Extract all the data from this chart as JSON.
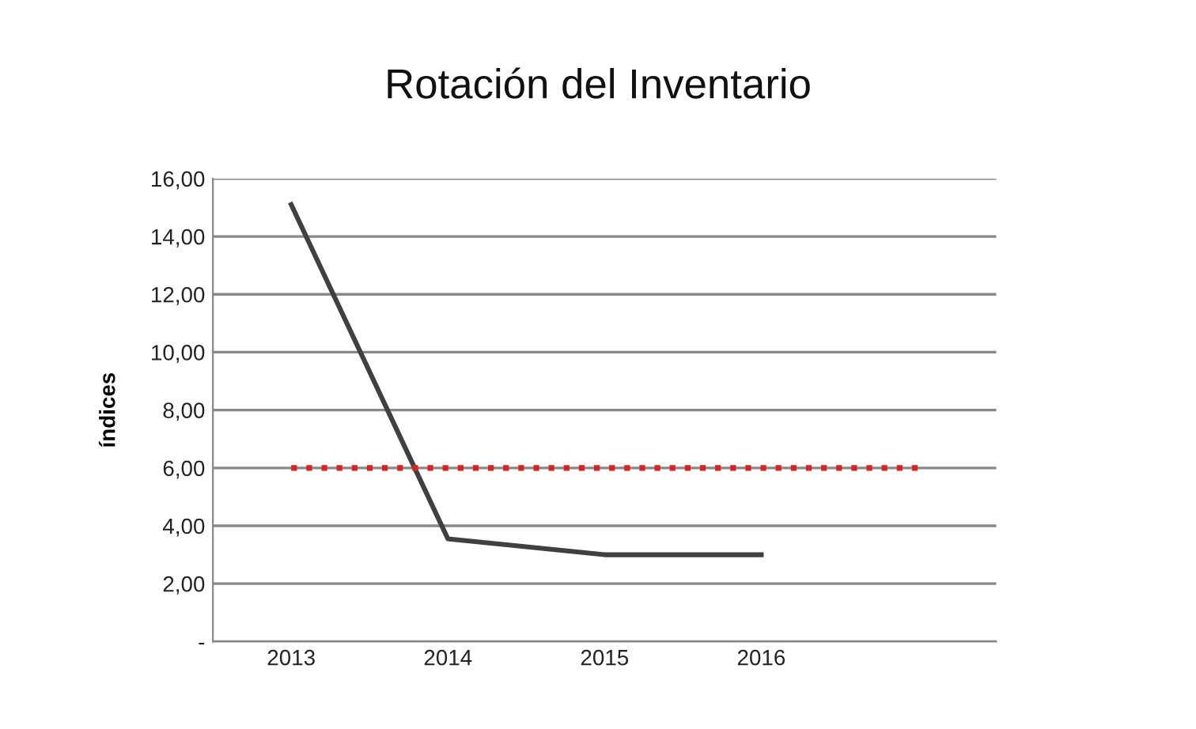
{
  "chart_data": {
    "type": "line",
    "title": "Rotación del Inventario",
    "ylabel": "índices",
    "categories": [
      "2013",
      "2014",
      "2015",
      "2016",
      null
    ],
    "series": [
      {
        "color": "#404040",
        "values": [
          15.1,
          3.55,
          3.0,
          3.0,
          null
        ],
        "line_style": "solid"
      },
      {
        "color": "#e02020",
        "values": [
          6,
          6,
          6,
          6,
          6
        ],
        "line_style": "dotted"
      }
    ],
    "ylim": [
      0,
      16
    ],
    "yticks": [
      {
        "value": 0,
        "label": "-"
      },
      {
        "value": 2,
        "label": "2,00"
      },
      {
        "value": 4,
        "label": "4,00"
      },
      {
        "value": 6,
        "label": "6,00"
      },
      {
        "value": 8,
        "label": "8,00"
      },
      {
        "value": 10,
        "label": "10,00"
      },
      {
        "value": 12,
        "label": "12,00"
      },
      {
        "value": 14,
        "label": "14,00"
      },
      {
        "value": 16,
        "label": "16,00"
      }
    ],
    "grid": "y",
    "marker": "none"
  }
}
